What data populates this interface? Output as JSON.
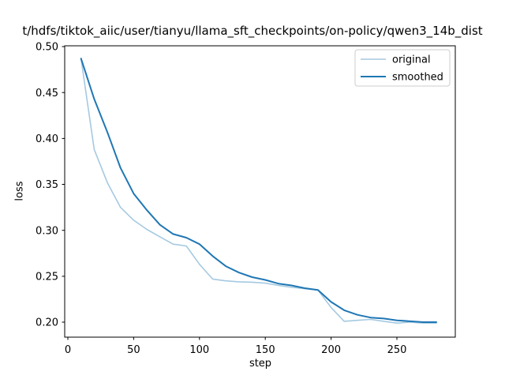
{
  "chart_data": {
    "type": "line",
    "title": "t/hdfs/tiktok_aiic/user/tianyu/llama_sft_checkpoints/on-policy/qwen3_14b_dist",
    "xlabel": "step",
    "ylabel": "loss",
    "x": [
      10,
      20,
      30,
      40,
      50,
      60,
      70,
      80,
      90,
      100,
      110,
      120,
      130,
      140,
      150,
      160,
      170,
      180,
      190,
      200,
      210,
      220,
      230,
      240,
      250,
      260,
      270,
      280
    ],
    "series": [
      {
        "name": "original",
        "color": "#a5c9e1",
        "width": 1.6,
        "values": [
          0.487,
          0.388,
          0.352,
          0.325,
          0.311,
          0.301,
          0.293,
          0.285,
          0.283,
          0.263,
          0.247,
          0.245,
          0.244,
          0.2435,
          0.2425,
          0.24,
          0.238,
          0.2365,
          0.235,
          0.216,
          0.201,
          0.202,
          0.203,
          0.201,
          0.199,
          0.2,
          0.199,
          0.199
        ]
      },
      {
        "name": "smoothed",
        "color": "#1f77b4",
        "width": 2.0,
        "values": [
          0.487,
          0.443,
          0.407,
          0.368,
          0.34,
          0.322,
          0.306,
          0.296,
          0.292,
          0.285,
          0.272,
          0.261,
          0.254,
          0.249,
          0.246,
          0.242,
          0.24,
          0.237,
          0.235,
          0.222,
          0.213,
          0.208,
          0.205,
          0.204,
          0.202,
          0.201,
          0.2,
          0.2
        ]
      }
    ],
    "xticks": [
      0,
      50,
      100,
      150,
      200,
      250
    ],
    "yticks": [
      0.2,
      0.25,
      0.3,
      0.35,
      0.4,
      0.45,
      0.5
    ],
    "xlim": [
      -2.4,
      294.4
    ],
    "ylim": [
      0.1837,
      0.5009
    ],
    "grid": false,
    "legend": {
      "position": "upper right",
      "entries": [
        "original",
        "smoothed"
      ]
    },
    "colors": {
      "background": "#ffffff",
      "axis": "#000000",
      "legend_border": "#cccccc"
    }
  }
}
